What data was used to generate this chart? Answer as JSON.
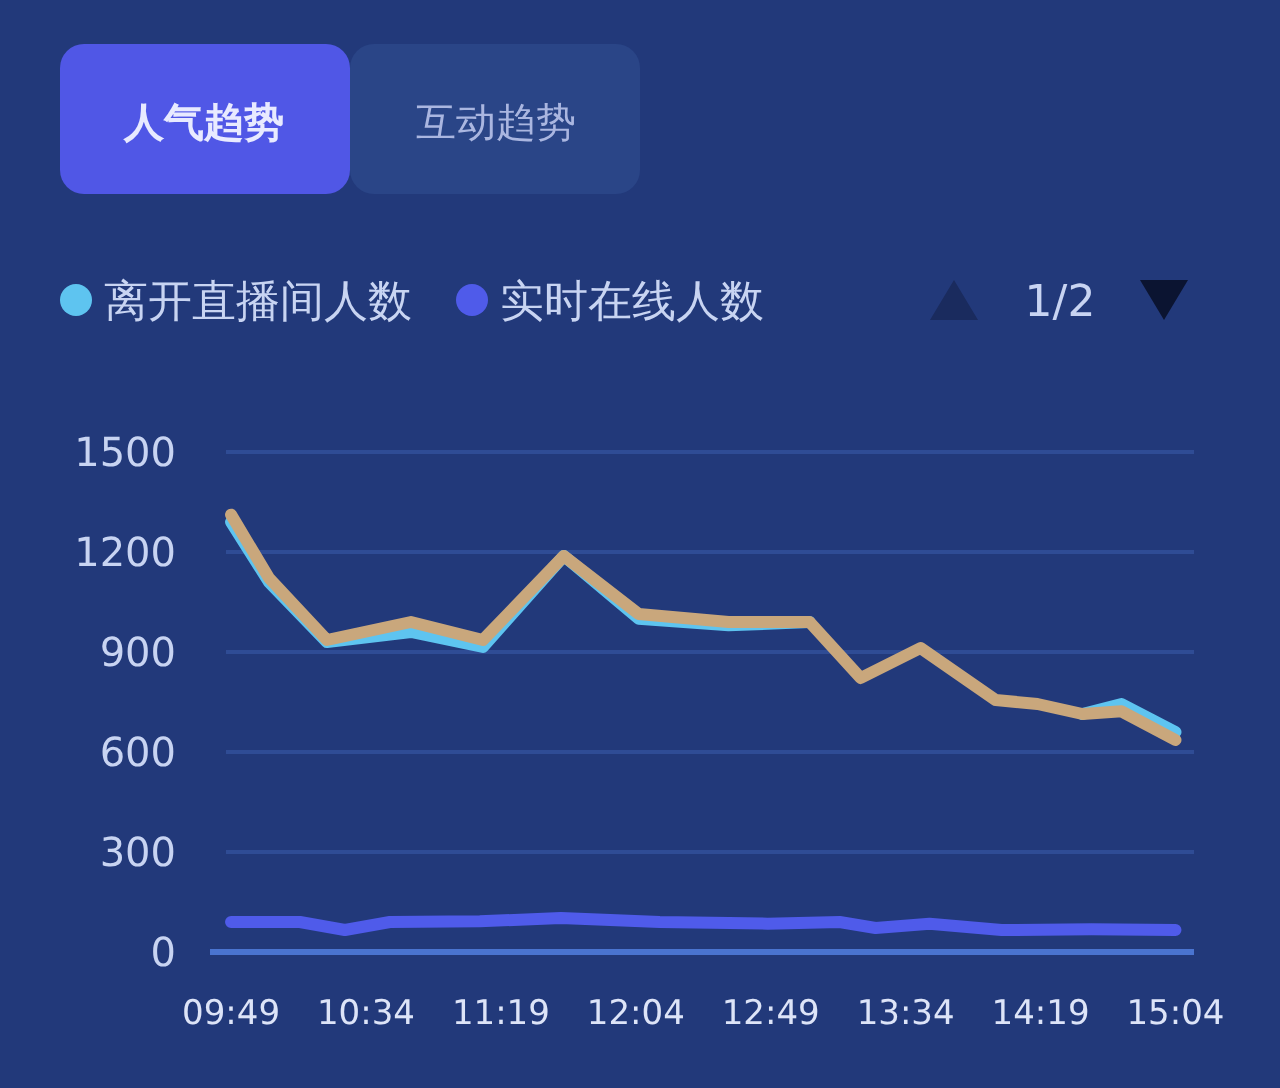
{
  "chart_data": {
    "type": "line",
    "legend": "top left",
    "grid": "y",
    "line_style": "solid",
    "marker": "none",
    "annotations": [
      "人气趋势",
      "互动趋势",
      "1/2"
    ],
    "xlim": [
      9.7,
      15.17
    ],
    "xticks": [
      {
        "value": 9.817,
        "label": "09:49"
      },
      {
        "value": 10.567,
        "label": "10:34"
      },
      {
        "value": 11.317,
        "label": "11:19"
      },
      {
        "value": 12.067,
        "label": "12:04"
      },
      {
        "value": 12.817,
        "label": "12:49"
      },
      {
        "value": 13.567,
        "label": "13:34"
      },
      {
        "value": 14.317,
        "label": "14:19"
      },
      {
        "value": 15.067,
        "label": "15:04"
      }
    ],
    "ylim": [
      0,
      1500
    ],
    "yticks": [
      0,
      300,
      600,
      900,
      1200,
      1500
    ],
    "series": [
      {
        "name": "离开直播间人数",
        "color": "#5ec4f0",
        "x": [
          9.817,
          10.028,
          10.35,
          10.817,
          11.217,
          11.667,
          12.083,
          12.583,
          13.033,
          null,
          null,
          null,
          null,
          14.55,
          14.767,
          15.067
        ],
        "values": [
          1290,
          1110,
          930,
          960,
          915,
          1188,
          1000,
          980,
          990,
          null,
          null,
          null,
          null,
          714,
          744,
          660
        ]
      },
      {
        "name": "实时在线人数",
        "color": "#4f5bea",
        "x": [
          9.817,
          10.2,
          10.45,
          10.7,
          11.2,
          11.65,
          12.2,
          12.8,
          13.2,
          13.4,
          13.7,
          14.1,
          14.6,
          15.067
        ],
        "values": [
          90,
          90,
          66,
          90,
          92,
          102,
          90,
          85,
          90,
          72,
          85,
          66,
          68,
          66
        ]
      },
      {
        "color": "#c9a77c",
        "x": [
          9.817,
          10.028,
          10.35,
          10.817,
          11.217,
          11.667,
          12.083,
          12.583,
          13.033,
          13.317,
          13.65,
          14.067,
          14.3,
          14.55,
          14.767,
          15.067
        ],
        "values": [
          1312,
          1122,
          936,
          990,
          936,
          1188,
          1014,
          990,
          990,
          822,
          912,
          756,
          744,
          714,
          722,
          636
        ]
      }
    ]
  }
}
